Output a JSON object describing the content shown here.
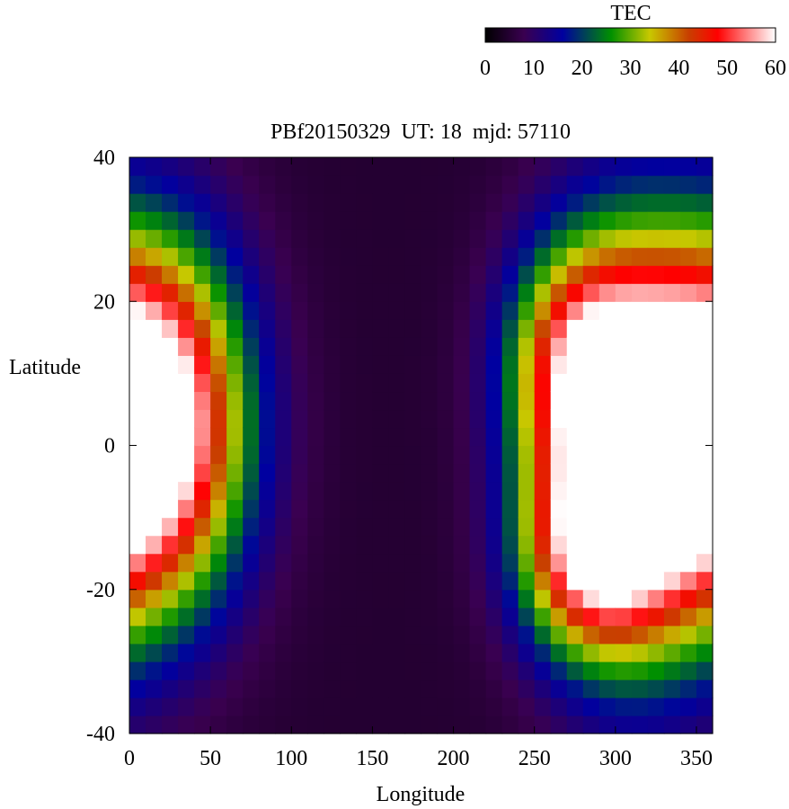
{
  "chart_data": {
    "type": "heatmap",
    "title": "PBf20150329  UT: 18  mjd: 57110",
    "xlabel": "Longitude",
    "ylabel": "Latitude",
    "xlim": [
      0,
      360
    ],
    "ylim": [
      -40,
      40
    ],
    "x_ticks": [
      "0",
      "50",
      "100",
      "150",
      "200",
      "250",
      "300",
      "350"
    ],
    "y_ticks": [
      "40",
      "20",
      "0",
      "-20",
      "-40"
    ],
    "colorbar": {
      "label": "TEC",
      "range": [
        0,
        60
      ],
      "ticks": [
        "0",
        "10",
        "20",
        "30",
        "40",
        "50",
        "60"
      ],
      "stops": [
        {
          "value": 0,
          "color": "#000000"
        },
        {
          "value": 8,
          "color": "#3a0050"
        },
        {
          "value": 16,
          "color": "#0000a0"
        },
        {
          "value": 26,
          "color": "#009000"
        },
        {
          "value": 34,
          "color": "#c8c800"
        },
        {
          "value": 42,
          "color": "#c84000"
        },
        {
          "value": 48,
          "color": "#ff0000"
        },
        {
          "value": 54,
          "color": "#ff8080"
        },
        {
          "value": 60,
          "color": "#ffffff"
        }
      ]
    },
    "grid": {
      "lon_step": 10,
      "lat_step": 2.5,
      "lon_start": 0,
      "lat_start": -40
    },
    "field_model": {
      "blobs": [
        {
          "lon": 15,
          "lat": 3,
          "amp": 64,
          "slon": 38,
          "slat": 17
        },
        {
          "lon": 310,
          "lat": 0,
          "amp": 66,
          "slon": 38,
          "slat": 19
        },
        {
          "lon": 280,
          "lat": -15,
          "amp": 30,
          "slon": 28,
          "slat": 9
        },
        {
          "lon": 272,
          "lat": 12,
          "amp": 26,
          "slon": 28,
          "slat": 11
        }
      ],
      "base": 5,
      "cap": 62
    }
  }
}
